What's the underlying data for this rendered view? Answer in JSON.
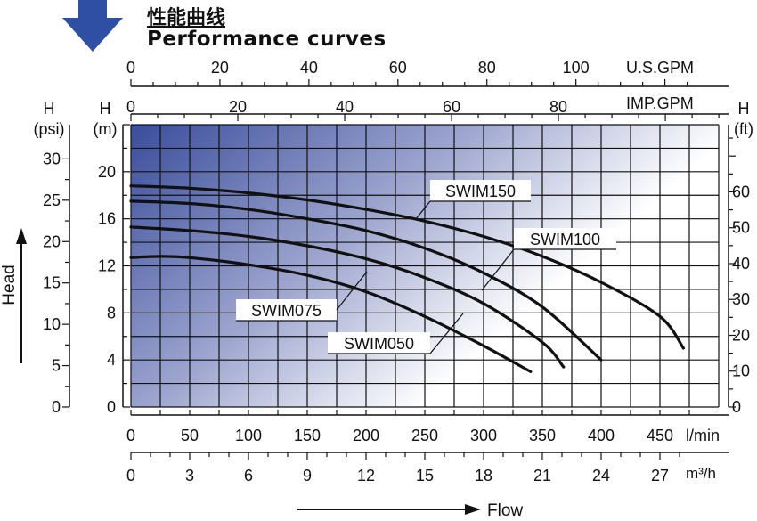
{
  "header": {
    "title_cn": "性能曲线",
    "title_en": "Performance curves"
  },
  "colors": {
    "gradient_dark": "#3a4d9c",
    "gradient_light": "#ffffff",
    "arrow": "#2e4fa3",
    "curve": "#111111"
  },
  "chart_data": {
    "type": "line",
    "x": {
      "label": "l/min",
      "range": [
        0,
        500
      ],
      "ticks": [
        0,
        50,
        100,
        150,
        200,
        250,
        300,
        350,
        400,
        450
      ]
    },
    "x_secondary": [
      {
        "label": "m³/h",
        "ticks": [
          "0",
          "3",
          "6",
          "9",
          "12",
          "15",
          "18",
          "21",
          "24",
          "27"
        ]
      },
      {
        "label": "U.S.GPM",
        "ticks": [
          "0",
          "20",
          "40",
          "60",
          "80",
          "100"
        ]
      },
      {
        "label": "IMP.GPM",
        "ticks": [
          "0",
          "20",
          "40",
          "60",
          "80"
        ]
      }
    ],
    "y": {
      "label": "H (m)",
      "unit_title": "H",
      "unit": "(m)",
      "range": [
        0,
        24
      ],
      "ticks": [
        0,
        4,
        8,
        12,
        16,
        20
      ]
    },
    "y_left_psi": {
      "unit_title": "H",
      "unit": "(psi)",
      "ticks": [
        0,
        5,
        10,
        15,
        20,
        25,
        30
      ]
    },
    "y_right_ft": {
      "unit_title": "H",
      "unit": "(ft)",
      "ticks": [
        0,
        10,
        20,
        30,
        40,
        50,
        60
      ]
    },
    "axis_caption_left": "Head",
    "axis_caption_bottom": "Flow",
    "grid": true,
    "series": [
      {
        "name": "SWIM150",
        "x": [
          0,
          50,
          100,
          150,
          200,
          250,
          300,
          350,
          400,
          450,
          470
        ],
        "y": [
          18.8,
          18.6,
          18.2,
          17.6,
          16.8,
          15.8,
          14.5,
          12.8,
          10.6,
          7.7,
          5.0
        ]
      },
      {
        "name": "SWIM100",
        "x": [
          0,
          50,
          100,
          150,
          200,
          250,
          300,
          350,
          400
        ],
        "y": [
          17.5,
          17.3,
          16.8,
          16.0,
          15.0,
          13.5,
          11.4,
          8.5,
          4.0
        ]
      },
      {
        "name": "SWIM075",
        "x": [
          0,
          50,
          100,
          150,
          200,
          250,
          300,
          350,
          368
        ],
        "y": [
          15.3,
          15.0,
          14.5,
          13.7,
          12.6,
          11.0,
          8.8,
          5.5,
          3.4
        ]
      },
      {
        "name": "SWIM050",
        "x": [
          0,
          25,
          50,
          100,
          150,
          200,
          250,
          300,
          340
        ],
        "y": [
          12.7,
          12.8,
          12.7,
          12.1,
          11.2,
          9.8,
          7.7,
          5.2,
          3.0
        ]
      }
    ]
  }
}
